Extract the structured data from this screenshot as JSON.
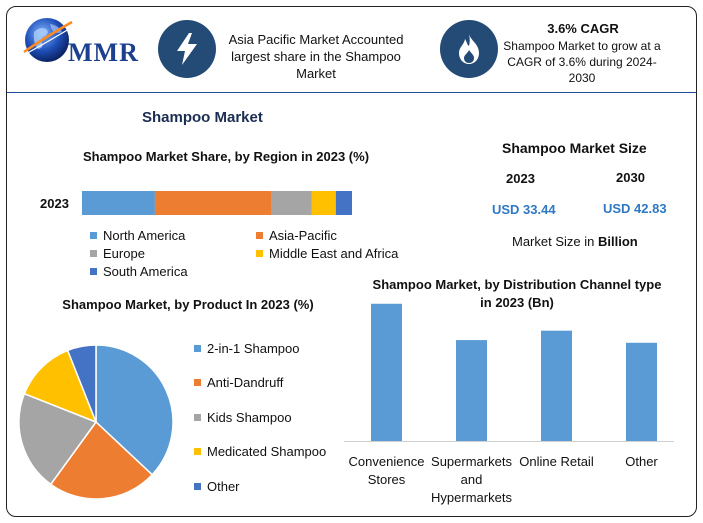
{
  "brand": {
    "logo_text": "MMR",
    "icon": "globe-icon"
  },
  "header": {
    "item1": {
      "icon": "lightning-icon",
      "text": "Asia Pacific Market Accounted largest share in the Shampoo Market"
    },
    "item2": {
      "icon": "flame-icon",
      "title": "3.6% CAGR",
      "text": "Shampoo Market to grow at a CAGR of 3.6% during 2024-2030"
    }
  },
  "main_title": "Shampoo Market",
  "market_size": {
    "title": "Shampoo Market Size",
    "years": [
      "2023",
      "2030"
    ],
    "values": [
      "USD 33.44",
      "USD 42.83"
    ],
    "unit_note_prefix": "Market Size in ",
    "unit_note_bold": "Billion"
  },
  "colors": {
    "blue": "#5b9bd5",
    "orange": "#ed7d31",
    "gray": "#a5a5a5",
    "yellow": "#ffc000",
    "darkblue": "#4472c4",
    "accent": "#234b75",
    "value_blue": "#2f78c4"
  },
  "chart_data": [
    {
      "type": "bar",
      "orientation": "horizontal-stacked",
      "title": "Shampoo Market Share, by Region in 2023 (%)",
      "categories": [
        "2023"
      ],
      "series": [
        {
          "name": "North America",
          "values": [
            27
          ],
          "color": "#5b9bd5"
        },
        {
          "name": "Asia-Pacific",
          "values": [
            43
          ],
          "color": "#ed7d31"
        },
        {
          "name": "Europe",
          "values": [
            15
          ],
          "color": "#a5a5a5"
        },
        {
          "name": "Middle East and Africa",
          "values": [
            9
          ],
          "color": "#ffc000"
        },
        {
          "name": "South America",
          "values": [
            6
          ],
          "color": "#4472c4"
        }
      ],
      "xlim": [
        0,
        100
      ],
      "legend": "bottom",
      "grid": false
    },
    {
      "type": "pie",
      "title": "Shampoo Market, by Product In 2023 (%)",
      "labels": [
        "2-in-1 Shampoo",
        "Anti-Dandruff",
        "Kids Shampoo",
        "Medicated Shampoo",
        "Other"
      ],
      "values": [
        37,
        23,
        21,
        13,
        6
      ],
      "colors": [
        "#5b9bd5",
        "#ed7d31",
        "#a5a5a5",
        "#ffc000",
        "#4472c4"
      ],
      "legend": "right"
    },
    {
      "type": "bar",
      "title": "Shampoo Market, by Distribution Channel type in 2023 (Bn)",
      "categories": [
        "Convenience Stores",
        "Supermarkets and Hypermarkets",
        "Online Retail",
        "Other"
      ],
      "category_lines": [
        [
          "Convenience",
          "Stores"
        ],
        [
          "Supermarkets",
          "and",
          "Hypermarkets"
        ],
        [
          "Online Retail"
        ],
        [
          "Other"
        ]
      ],
      "values": [
        10.2,
        7.5,
        8.2,
        7.3
      ],
      "ylim": [
        0,
        11
      ],
      "color": "#5b9bd5",
      "grid": false,
      "legend": "none"
    }
  ]
}
